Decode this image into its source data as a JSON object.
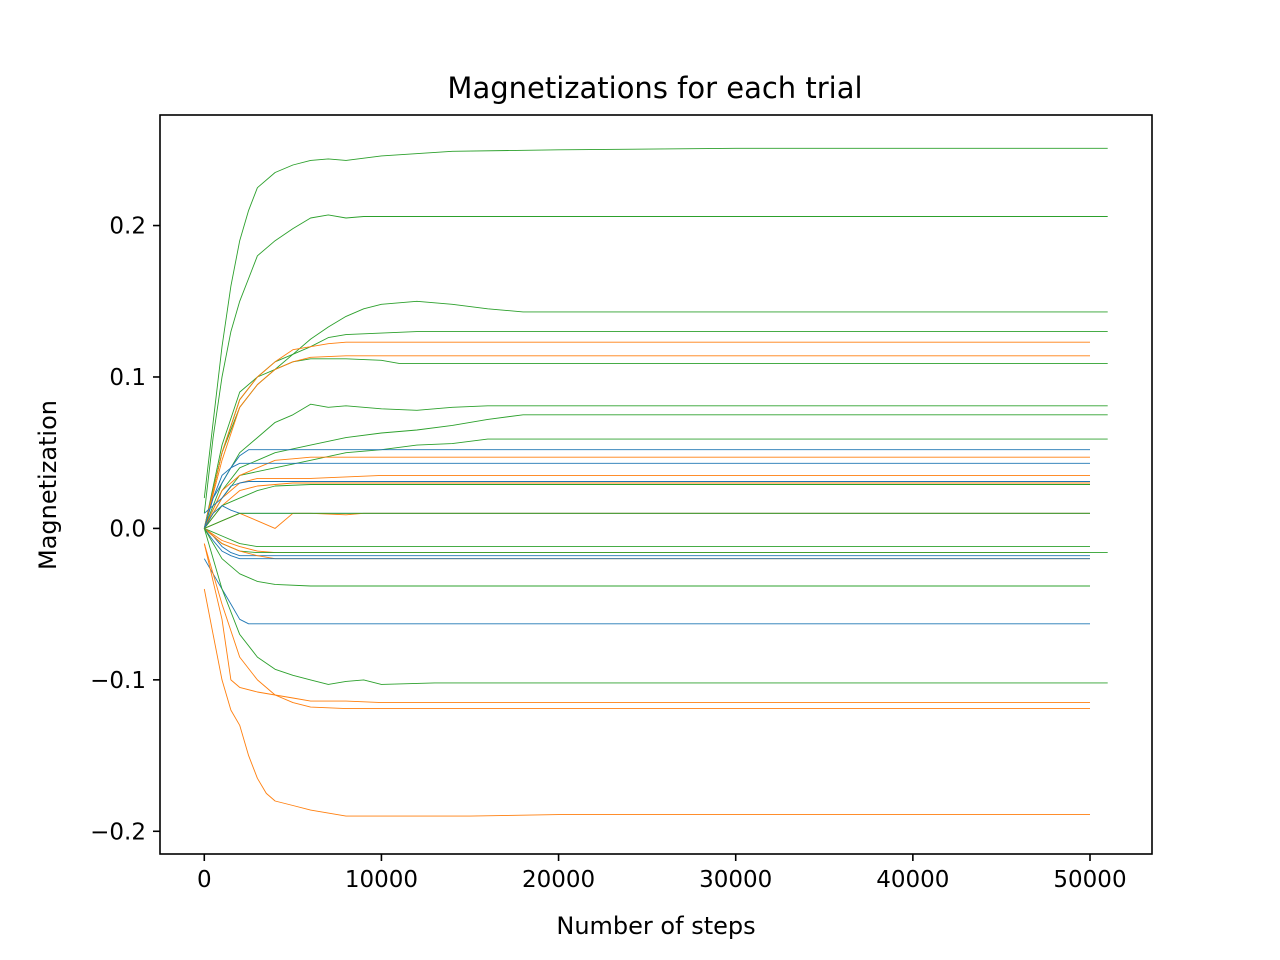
{
  "chart_data": {
    "type": "line",
    "title": "Magnetizations for each trial",
    "xlabel": "Number of steps",
    "ylabel": "Magnetization",
    "xlim": [
      -2500,
      53500
    ],
    "ylim": [
      -0.215,
      0.273
    ],
    "xticks": [
      0,
      10000,
      20000,
      30000,
      40000,
      50000
    ],
    "xtick_labels": [
      "0",
      "10000",
      "20000",
      "30000",
      "40000",
      "50000"
    ],
    "yticks": [
      -0.2,
      -0.1,
      0.0,
      0.1,
      0.2
    ],
    "ytick_labels": [
      "−0.2",
      "−0.1",
      "0.0",
      "0.1",
      "0.2"
    ],
    "grid": false,
    "legend": "none",
    "colors": {
      "blue": "#1f77b4",
      "orange": "#ff7f0e",
      "green": "#2ca02c"
    },
    "series": [
      {
        "color": "#2ca02c",
        "x": [
          0,
          500,
          1000,
          1500,
          2000,
          2500,
          3000,
          4000,
          5000,
          6000,
          7000,
          8000,
          10000,
          14000,
          20000,
          30000,
          51000
        ],
        "y": [
          0.02,
          0.07,
          0.12,
          0.16,
          0.19,
          0.21,
          0.225,
          0.235,
          0.24,
          0.243,
          0.244,
          0.243,
          0.246,
          0.249,
          0.25,
          0.251,
          0.251
        ]
      },
      {
        "color": "#2ca02c",
        "x": [
          0,
          500,
          1000,
          1500,
          2000,
          2500,
          3000,
          4000,
          5000,
          6000,
          7000,
          8000,
          9000,
          10000,
          51000
        ],
        "y": [
          0.01,
          0.06,
          0.1,
          0.13,
          0.15,
          0.165,
          0.18,
          0.19,
          0.198,
          0.205,
          0.207,
          0.205,
          0.206,
          0.206,
          0.206
        ]
      },
      {
        "color": "#2ca02c",
        "x": [
          0,
          1000,
          2000,
          3000,
          4000,
          5000,
          6000,
          7000,
          8000,
          9000,
          10000,
          12000,
          14000,
          16000,
          18000,
          20000,
          51000
        ],
        "y": [
          0.0,
          0.05,
          0.08,
          0.095,
          0.105,
          0.115,
          0.125,
          0.133,
          0.14,
          0.145,
          0.148,
          0.15,
          0.148,
          0.145,
          0.143,
          0.143,
          0.143
        ]
      },
      {
        "color": "#2ca02c",
        "x": [
          0,
          1000,
          2000,
          3000,
          4000,
          5000,
          6000,
          7000,
          8000,
          10000,
          12000,
          51000
        ],
        "y": [
          0.0,
          0.05,
          0.085,
          0.1,
          0.11,
          0.115,
          0.12,
          0.126,
          0.128,
          0.129,
          0.13,
          0.13
        ]
      },
      {
        "color": "#2ca02c",
        "x": [
          0,
          1000,
          2000,
          3000,
          4000,
          5000,
          6000,
          8000,
          10000,
          11000,
          51000
        ],
        "y": [
          0.0,
          0.055,
          0.09,
          0.1,
          0.105,
          0.11,
          0.112,
          0.112,
          0.111,
          0.109,
          0.109
        ]
      },
      {
        "color": "#ff7f0e",
        "x": [
          0,
          1000,
          2000,
          3000,
          4000,
          5000,
          6000,
          7000,
          8000,
          10000,
          50000
        ],
        "y": [
          0.0,
          0.05,
          0.085,
          0.1,
          0.11,
          0.118,
          0.12,
          0.122,
          0.123,
          0.123,
          0.123
        ]
      },
      {
        "color": "#ff7f0e",
        "x": [
          0,
          1000,
          2000,
          3000,
          4000,
          5000,
          6000,
          8000,
          10000,
          50000
        ],
        "y": [
          0.0,
          0.045,
          0.08,
          0.095,
          0.105,
          0.11,
          0.113,
          0.114,
          0.114,
          0.114
        ]
      },
      {
        "color": "#2ca02c",
        "x": [
          0,
          1000,
          2000,
          3000,
          4000,
          5000,
          6000,
          7000,
          8000,
          10000,
          12000,
          14000,
          16000,
          51000
        ],
        "y": [
          0.0,
          0.03,
          0.05,
          0.06,
          0.07,
          0.075,
          0.082,
          0.08,
          0.081,
          0.079,
          0.078,
          0.08,
          0.081,
          0.081
        ]
      },
      {
        "color": "#2ca02c",
        "x": [
          0,
          1000,
          2000,
          3000,
          4000,
          6000,
          8000,
          10000,
          12000,
          14000,
          16000,
          18000,
          51000
        ],
        "y": [
          0.0,
          0.025,
          0.04,
          0.045,
          0.05,
          0.055,
          0.06,
          0.063,
          0.065,
          0.068,
          0.072,
          0.075,
          0.075
        ]
      },
      {
        "color": "#2ca02c",
        "x": [
          0,
          1000,
          2000,
          4000,
          6000,
          8000,
          10000,
          12000,
          14000,
          16000,
          51000
        ],
        "y": [
          0.0,
          0.02,
          0.035,
          0.04,
          0.045,
          0.05,
          0.052,
          0.055,
          0.056,
          0.059,
          0.059
        ]
      },
      {
        "color": "#1f77b4",
        "x": [
          0,
          500,
          1000,
          1500,
          2000,
          2500,
          50000
        ],
        "y": [
          0.0,
          0.02,
          0.035,
          0.04,
          0.048,
          0.052,
          0.052
        ]
      },
      {
        "color": "#ff7f0e",
        "x": [
          0,
          1000,
          2000,
          3000,
          4000,
          5000,
          6000,
          50000
        ],
        "y": [
          0.0,
          0.025,
          0.035,
          0.04,
          0.045,
          0.046,
          0.047,
          0.047
        ]
      },
      {
        "color": "#1f77b4",
        "x": [
          0,
          500,
          1000,
          1500,
          2000,
          2500,
          50000
        ],
        "y": [
          0.0,
          0.02,
          0.03,
          0.04,
          0.043,
          0.043,
          0.043
        ]
      },
      {
        "color": "#ff7f0e",
        "x": [
          0,
          1000,
          2000,
          3000,
          4000,
          6000,
          8000,
          10000,
          12000,
          50000
        ],
        "y": [
          0.0,
          0.02,
          0.03,
          0.033,
          0.033,
          0.033,
          0.034,
          0.035,
          0.035,
          0.035
        ]
      },
      {
        "color": "#1f77b4",
        "x": [
          0,
          500,
          1000,
          1500,
          2000,
          2500,
          50000
        ],
        "y": [
          0.01,
          0.015,
          0.02,
          0.028,
          0.03,
          0.031,
          0.031
        ]
      },
      {
        "color": "#ff7f0e",
        "x": [
          0,
          1000,
          2000,
          3000,
          4000,
          5000,
          6000,
          50000
        ],
        "y": [
          0.0,
          0.015,
          0.025,
          0.028,
          0.029,
          0.03,
          0.03,
          0.03
        ]
      },
      {
        "color": "#2ca02c",
        "x": [
          0,
          1000,
          2000,
          3000,
          4000,
          6000,
          8000,
          50000
        ],
        "y": [
          0.0,
          0.015,
          0.02,
          0.025,
          0.028,
          0.029,
          0.029,
          0.029
        ]
      },
      {
        "color": "#1f77b4",
        "x": [
          0,
          500,
          1000,
          1500,
          2000,
          2500,
          50000
        ],
        "y": [
          0.0,
          0.01,
          0.015,
          0.012,
          0.01,
          0.01,
          0.01
        ]
      },
      {
        "color": "#ff7f0e",
        "x": [
          0,
          1000,
          2000,
          3000,
          4000,
          5000,
          6000,
          8000,
          9000,
          50000
        ],
        "y": [
          0.0,
          0.005,
          0.01,
          0.005,
          0.0,
          0.01,
          0.01,
          0.009,
          0.01,
          0.01
        ]
      },
      {
        "color": "#2ca02c",
        "x": [
          0,
          1000,
          2000,
          3000,
          4000,
          5000,
          6000,
          50000
        ],
        "y": [
          0.0,
          0.005,
          0.01,
          0.01,
          0.01,
          0.01,
          0.01,
          0.01
        ]
      },
      {
        "color": "#2ca02c",
        "x": [
          0,
          1000,
          2000,
          3000,
          4000,
          6000,
          8000,
          50000
        ],
        "y": [
          0.0,
          -0.005,
          -0.01,
          -0.012,
          -0.012,
          -0.012,
          -0.012,
          -0.012
        ]
      },
      {
        "color": "#ff7f0e",
        "x": [
          0,
          1000,
          2000,
          3000,
          4000,
          5000,
          6000,
          50000
        ],
        "y": [
          0.0,
          -0.008,
          -0.012,
          -0.015,
          -0.016,
          -0.016,
          -0.016,
          -0.016
        ]
      },
      {
        "color": "#2ca02c",
        "x": [
          0,
          1000,
          2000,
          3000,
          4000,
          6000,
          8000,
          10000,
          51000
        ],
        "y": [
          0.0,
          -0.01,
          -0.015,
          -0.016,
          -0.016,
          -0.016,
          -0.016,
          -0.016,
          -0.016
        ]
      },
      {
        "color": "#1f77b4",
        "x": [
          0,
          500,
          1000,
          1500,
          2000,
          2500,
          50000
        ],
        "y": [
          0.0,
          -0.005,
          -0.012,
          -0.016,
          -0.018,
          -0.018,
          -0.018
        ]
      },
      {
        "color": "#ff7f0e",
        "x": [
          0,
          1000,
          2000,
          3000,
          4000,
          5000,
          6000,
          50000
        ],
        "y": [
          0.0,
          -0.01,
          -0.015,
          -0.018,
          -0.02,
          -0.02,
          -0.02,
          -0.02
        ]
      },
      {
        "color": "#1f77b4",
        "x": [
          0,
          500,
          1000,
          1500,
          2000,
          2500,
          50000
        ],
        "y": [
          0.0,
          -0.008,
          -0.015,
          -0.018,
          -0.02,
          -0.02,
          -0.02
        ]
      },
      {
        "color": "#2ca02c",
        "x": [
          0,
          1000,
          2000,
          3000,
          4000,
          6000,
          50000
        ],
        "y": [
          0.0,
          -0.02,
          -0.03,
          -0.035,
          -0.037,
          -0.038,
          -0.038
        ]
      },
      {
        "color": "#1f77b4",
        "x": [
          0,
          500,
          1000,
          1500,
          2000,
          2500,
          50000
        ],
        "y": [
          -0.02,
          -0.03,
          -0.04,
          -0.05,
          -0.06,
          -0.063,
          -0.063
        ]
      },
      {
        "color": "#2ca02c",
        "x": [
          0,
          1000,
          2000,
          3000,
          4000,
          5000,
          6000,
          7000,
          8000,
          9000,
          10000,
          13000,
          51000
        ],
        "y": [
          0.0,
          -0.04,
          -0.07,
          -0.085,
          -0.093,
          -0.097,
          -0.1,
          -0.103,
          -0.101,
          -0.1,
          -0.103,
          -0.102,
          -0.102
        ]
      },
      {
        "color": "#ff7f0e",
        "x": [
          0,
          1000,
          1500,
          2000,
          3000,
          4000,
          5000,
          6000,
          8000,
          10000,
          12000,
          50000
        ],
        "y": [
          -0.01,
          -0.06,
          -0.1,
          -0.105,
          -0.108,
          -0.11,
          -0.112,
          -0.114,
          -0.114,
          -0.115,
          -0.115,
          -0.115
        ]
      },
      {
        "color": "#ff7f0e",
        "x": [
          0,
          1000,
          2000,
          3000,
          4000,
          5000,
          6000,
          8000,
          10000,
          50000
        ],
        "y": [
          -0.01,
          -0.05,
          -0.085,
          -0.1,
          -0.11,
          -0.115,
          -0.118,
          -0.119,
          -0.119,
          -0.119
        ]
      },
      {
        "color": "#ff7f0e",
        "x": [
          0,
          500,
          1000,
          1500,
          2000,
          2500,
          3000,
          3500,
          4000,
          5000,
          6000,
          7000,
          8000,
          10000,
          15000,
          20000,
          50000
        ],
        "y": [
          -0.04,
          -0.07,
          -0.1,
          -0.12,
          -0.13,
          -0.15,
          -0.165,
          -0.175,
          -0.18,
          -0.183,
          -0.186,
          -0.188,
          -0.19,
          -0.19,
          -0.19,
          -0.189,
          -0.189
        ]
      }
    ]
  }
}
